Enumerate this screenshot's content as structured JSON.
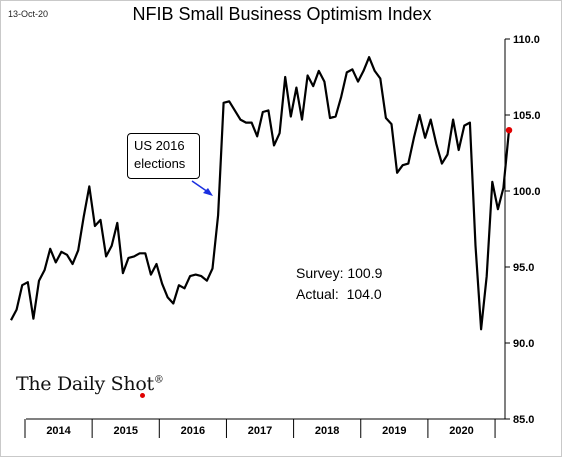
{
  "header": {
    "date": "13-Oct-20",
    "title": "NFIB Small Business Optimism Index"
  },
  "annotation": {
    "lines": [
      "US 2016",
      "elections"
    ]
  },
  "stats": {
    "survey": "Survey: 100.9",
    "actual": "Actual:  104.0"
  },
  "logo": {
    "text": "The Daily Shot",
    "mark": "®"
  },
  "colors": {
    "line": "#000000",
    "arrow": "#1a2fe0",
    "last_point": "#e00000",
    "logo_dot": "#e00000"
  },
  "chart_data": {
    "type": "line",
    "title": "NFIB Small Business Optimism Index",
    "x_start": "2013-10",
    "frequency": "monthly",
    "y_axis_position": "right",
    "ylim": [
      85.0,
      110.0
    ],
    "yticks": [
      "85.0",
      "90.0",
      "95.0",
      "100.0",
      "105.0",
      "110.0"
    ],
    "year_labels": [
      "2014",
      "2015",
      "2016",
      "2017",
      "2018",
      "2019",
      "2020"
    ],
    "grid": false,
    "series": [
      {
        "values": [
          91.5,
          92.2,
          93.8,
          94.0,
          91.6,
          94.1,
          94.8,
          96.2,
          95.3,
          96.0,
          95.8,
          95.2,
          96.1,
          98.3,
          100.3,
          97.7,
          98.1,
          95.7,
          96.4,
          97.9,
          94.6,
          95.6,
          95.7,
          95.9,
          95.9,
          94.5,
          95.2,
          93.9,
          93.0,
          92.6,
          93.8,
          93.6,
          94.4,
          94.5,
          94.4,
          94.1,
          94.9,
          98.4,
          105.8,
          105.9,
          105.3,
          104.7,
          104.5,
          104.5,
          103.6,
          105.2,
          105.3,
          103.0,
          103.8,
          107.5,
          104.9,
          106.8,
          104.7,
          107.6,
          106.9,
          107.9,
          107.2,
          104.8,
          104.9,
          106.2,
          107.8,
          108.0,
          107.2,
          107.9,
          108.8,
          107.9,
          107.4,
          104.8,
          104.4,
          101.2,
          101.7,
          101.8,
          103.5,
          105.0,
          103.5,
          104.7,
          103.1,
          101.8,
          102.4,
          104.7,
          102.7,
          104.3,
          104.5,
          96.4,
          90.9,
          94.4,
          100.6,
          98.8,
          100.2,
          104.0
        ]
      }
    ],
    "last_point_value": 104.0
  }
}
